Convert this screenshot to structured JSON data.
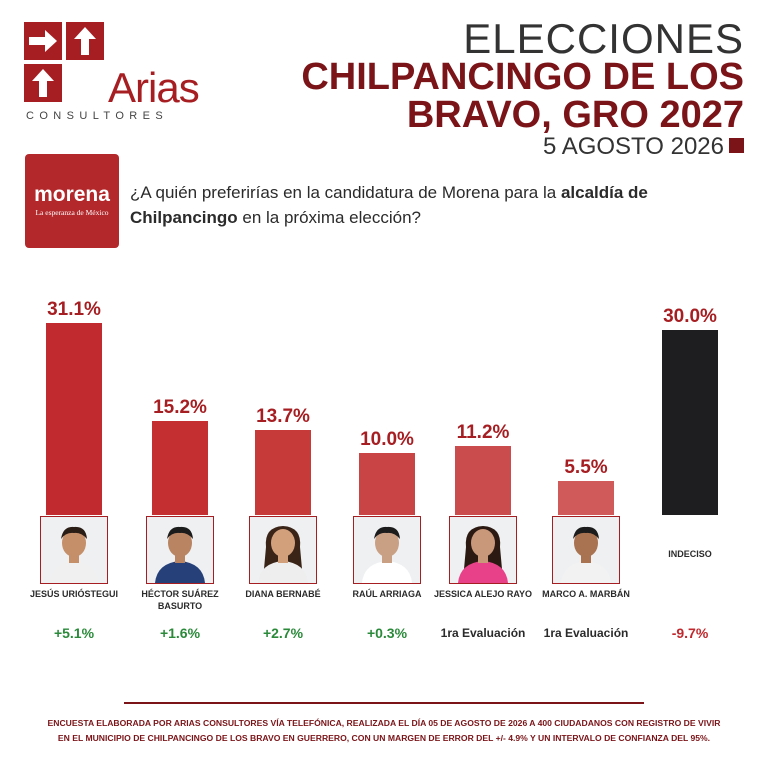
{
  "logo": {
    "brand": "Arias",
    "sub": "CONSULTORES",
    "colors": {
      "accent": "#a61e22"
    }
  },
  "heading": {
    "top": "ELECCIONES",
    "main": "CHILPANCINGO DE LOS BRAVO, GRO 2027",
    "date": "5 AGOSTO 2026"
  },
  "party": {
    "name": "morena",
    "slogan": "La esperanza de México"
  },
  "question": {
    "part1": "¿A quién preferirías en la candidatura de Morena para la ",
    "bold": "alcaldía de Chilpancingo",
    "part2": " en la próxima elección?"
  },
  "chart_data": {
    "type": "bar",
    "categories": [
      "JESÚS URIÓSTEGUI",
      "HÉCTOR SUÁREZ BASURTO",
      "DIANA BERNABÉ",
      "RAÚL ARRIAGA",
      "JESSICA ALEJO RAYO",
      "MARCO A. MARBÁN",
      "INDECISO"
    ],
    "values": [
      31.1,
      15.2,
      13.7,
      10.0,
      11.2,
      5.5,
      30.0
    ],
    "value_labels": [
      "31.1%",
      "15.2%",
      "13.7%",
      "10.0%",
      "11.2%",
      "5.5%",
      "30.0%"
    ],
    "changes": [
      "+5.1%",
      "+1.6%",
      "+2.7%",
      "+0.3%",
      "1ra Evaluación",
      "1ra Evaluación",
      "-9.7%"
    ],
    "change_types": [
      "pos",
      "pos",
      "pos",
      "pos",
      "note",
      "note",
      "neg"
    ],
    "bar_colors": [
      "#c12a2e",
      "#c43032",
      "#c73a3a",
      "#c94444",
      "#cb4c4c",
      "#d05a5a",
      "#1e1e20"
    ],
    "ylim": [
      0,
      31.1
    ],
    "grid": false
  },
  "footer": {
    "line1": "ENCUESTA ELABORADA POR ARIAS CONSULTORES VÍA TELEFÓNICA, REALIZADA EL DÍA 05 DE AGOSTO DE 2026 A 400 CIUDADANOS CON REGISTRO DE VIVIR",
    "line2": "EN EL MUNICIPIO DE CHILPANCINGO DE LOS BRAVO EN GUERRERO, CON UN MARGEN DE ERROR DEL +/- 4.9% Y UN INTERVALO DE CONFIANZA DEL 95%."
  }
}
